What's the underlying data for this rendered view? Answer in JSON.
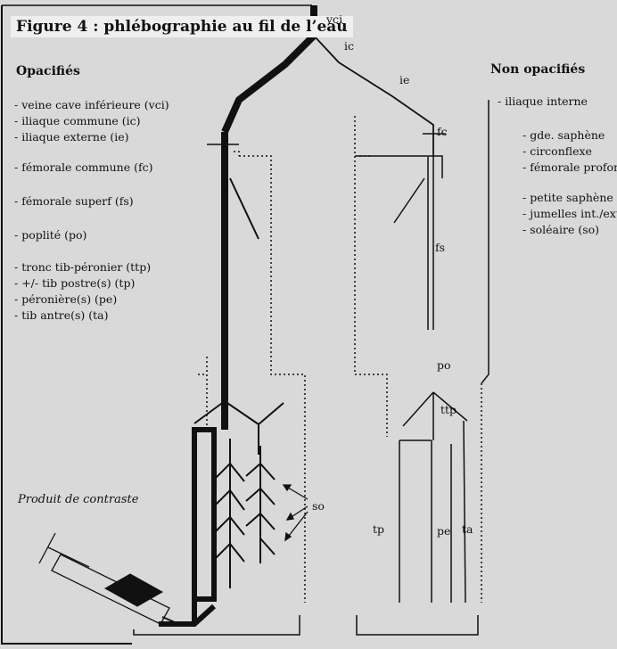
{
  "figure": {
    "title": "Figure 4 : phlébographie au fil de l’eau",
    "opacified_heading": "Opacifiés",
    "non_opacified_heading": "Non opacifiés",
    "opacified": [
      "- veine cave inférieure (vci)",
      "- iliaque commune (ic)",
      "- iliaque externe (ie)",
      "- fémorale commune (fc)",
      "- fémorale superf (fs)",
      "- poplité (po)",
      "- tronc tib-péronier (ttp)",
      "- +/- tib postre(s) (tp)",
      "- péronière(s) (pe)",
      "- tib antre(s) (ta)"
    ],
    "non_opacified": [
      "- iliaque interne",
      "- gde. saphène",
      "- circonflexe",
      "- fémorale profonde",
      "- petite saphène",
      "- jumelles int./ext.",
      "- soléaire (so)"
    ],
    "vessel_labels": {
      "vci": "vci",
      "ic": "ic",
      "ie": "ie",
      "fc": "fc",
      "fs": "fs",
      "po": "po",
      "ttp": "ttp",
      "tp": "tp",
      "pe": "pe",
      "ta": "ta",
      "so": "so"
    },
    "caption": "Produit de contraste"
  },
  "colors": {
    "ink": "#111111",
    "paper": "#d9d9d9",
    "ghost_text": "#b8b8b8"
  }
}
